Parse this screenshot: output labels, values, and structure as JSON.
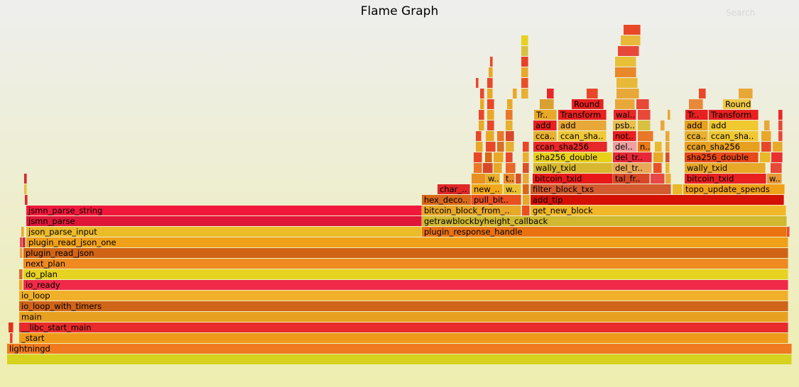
{
  "title": "Flame Graph",
  "search_label": "Search",
  "frames": [
    {
      "label": "",
      "d": 0,
      "l": 10,
      "w": 1105,
      "c": "#d6d21e"
    },
    {
      "label": "lightningd",
      "d": 1,
      "l": 10,
      "w": 1105,
      "c": "#f07a20"
    },
    {
      "label": "_start",
      "d": 2,
      "l": 27,
      "w": 1083,
      "c": "#ee9a18"
    },
    {
      "label": "",
      "d": 2,
      "l": 14,
      "w": 3,
      "c": "#e84030"
    },
    {
      "label": "__libc_start_main",
      "d": 3,
      "l": 27,
      "w": 1083,
      "c": "#e82a2a"
    },
    {
      "label": "",
      "d": 3,
      "l": 12,
      "w": 2,
      "c": "#d83820"
    },
    {
      "label": "",
      "d": 3,
      "l": 15,
      "w": 2,
      "c": "#e83020"
    },
    {
      "label": "main",
      "d": 4,
      "l": 27,
      "w": 1083,
      "c": "#e8a020"
    },
    {
      "label": "io_loop_with_timers",
      "d": 5,
      "l": 27,
      "w": 1083,
      "c": "#d06418"
    },
    {
      "label": "io_loop",
      "d": 6,
      "l": 27,
      "w": 1083,
      "c": "#f0b02a"
    },
    {
      "label": "io_ready",
      "d": 7,
      "l": 33,
      "w": 1077,
      "c": "#f02a48"
    },
    {
      "label": "",
      "d": 7,
      "l": 27,
      "w": 5,
      "c": "#e8a828"
    },
    {
      "label": "do_plan",
      "d": 8,
      "l": 33,
      "w": 1077,
      "c": "#e6d220"
    },
    {
      "label": "",
      "d": 8,
      "l": 27,
      "w": 5,
      "c": "#d86a28"
    },
    {
      "label": "next_plan",
      "d": 9,
      "l": 33,
      "w": 1077,
      "c": "#ee8a20"
    },
    {
      "label": "plugin_read_json",
      "d": 10,
      "l": 33,
      "w": 1077,
      "c": "#d06414"
    },
    {
      "label": "",
      "d": 10,
      "l": 28,
      "w": 4,
      "c": "#e8a040"
    },
    {
      "label": "plugin_read_json_one",
      "d": 11,
      "l": 37,
      "w": 1073,
      "c": "#f0a018"
    },
    {
      "label": "",
      "d": 11,
      "l": 28,
      "w": 3,
      "c": "#e05050"
    },
    {
      "label": "",
      "d": 11,
      "l": 32,
      "w": 3,
      "c": "#c83030"
    },
    {
      "label": "json_parse_input",
      "d": 12,
      "l": 37,
      "w": 557,
      "c": "#ecbc28"
    },
    {
      "label": "plugin_response_handle",
      "d": 12,
      "l": 594,
      "w": 514,
      "c": "#ea7210"
    },
    {
      "label": "",
      "d": 12,
      "l": 30,
      "w": 3,
      "c": "#e8a828"
    },
    {
      "label": "",
      "d": 12,
      "l": 1108,
      "w": 3,
      "c": "#e85030"
    },
    {
      "label": "jsmn_parse",
      "d": 13,
      "l": 37,
      "w": 557,
      "c": "#e01638"
    },
    {
      "label": "getrawblockbyheight_callback",
      "d": 13,
      "l": 594,
      "w": 514,
      "c": "#d0b830"
    },
    {
      "label": "jsmn_parse_string",
      "d": 14,
      "l": 37,
      "w": 557,
      "c": "#f2183c"
    },
    {
      "label": "bitcoin_block_from_..",
      "d": 14,
      "l": 594,
      "w": 140,
      "c": "#e8a828"
    },
    {
      "label": "get_new_block",
      "d": 14,
      "l": 747,
      "w": 360,
      "c": "#f0b828"
    },
    {
      "label": "",
      "d": 14,
      "l": 735,
      "w": 11,
      "c": "#e85020"
    },
    {
      "label": "",
      "d": 15,
      "l": 35,
      "w": 2,
      "c": "#e02828"
    },
    {
      "label": "hex_deco..",
      "d": 15,
      "l": 594,
      "w": 70,
      "c": "#d86818"
    },
    {
      "label": "pull_bit..",
      "d": 15,
      "l": 664,
      "w": 70,
      "c": "#e85020"
    },
    {
      "label": "",
      "d": 15,
      "l": 736,
      "w": 10,
      "c": "#e8a828"
    },
    {
      "label": "add_tip",
      "d": 15,
      "l": 747,
      "w": 357,
      "c": "#d41000"
    },
    {
      "label": "",
      "d": 16,
      "l": 34,
      "w": 3,
      "c": "#e8c040"
    },
    {
      "label": "char_..",
      "d": 16,
      "l": 616,
      "w": 46,
      "c": "#e02828"
    },
    {
      "label": "new_..",
      "d": 16,
      "l": 664,
      "w": 44,
      "c": "#f0a818"
    },
    {
      "label": "w..",
      "d": 16,
      "l": 709,
      "w": 25,
      "c": "#e8c030"
    },
    {
      "label": "",
      "d": 16,
      "l": 736,
      "w": 9,
      "c": "#d86818"
    },
    {
      "label": "filter_block_txs",
      "d": 16,
      "l": 747,
      "w": 198,
      "c": "#d45a30"
    },
    {
      "label": "",
      "d": 16,
      "l": 947,
      "w": 14,
      "c": "#e8b828"
    },
    {
      "label": "topo_update_spends",
      "d": 16,
      "l": 962,
      "w": 143,
      "c": "#f0a018"
    },
    {
      "label": "",
      "d": 17,
      "l": 34,
      "w": 3,
      "c": "#d82828"
    },
    {
      "label": "",
      "d": 17,
      "l": 664,
      "w": 20,
      "c": "#e89020"
    },
    {
      "label": "w..",
      "d": 17,
      "l": 684,
      "w": 20,
      "c": "#e8b028"
    },
    {
      "label": "t..",
      "d": 17,
      "l": 709,
      "w": 16,
      "c": "#e88828"
    },
    {
      "label": "",
      "d": 17,
      "l": 726,
      "w": 8,
      "c": "#d85028"
    },
    {
      "label": "",
      "d": 17,
      "l": 736,
      "w": 9,
      "c": "#e8a838"
    },
    {
      "label": "bitcoin_txid",
      "d": 17,
      "l": 750,
      "w": 113,
      "c": "#e81818"
    },
    {
      "label": "tal_fr..",
      "d": 17,
      "l": 863,
      "w": 52,
      "c": "#d84828"
    },
    {
      "label": "",
      "d": 17,
      "l": 916,
      "w": 20,
      "c": "#e84848"
    },
    {
      "label": "",
      "d": 17,
      "l": 937,
      "w": 8,
      "c": "#e8a838"
    },
    {
      "label": "bitcoin_txid",
      "d": 17,
      "l": 964,
      "w": 115,
      "c": "#e82020"
    },
    {
      "label": "w..",
      "d": 17,
      "l": 1080,
      "w": 21,
      "c": "#e89838"
    },
    {
      "label": "",
      "d": 18,
      "l": 667,
      "w": 12,
      "c": "#e87828"
    },
    {
      "label": "",
      "d": 18,
      "l": 680,
      "w": 14,
      "c": "#d84828"
    },
    {
      "label": "",
      "d": 18,
      "l": 695,
      "w": 12,
      "c": "#e8a828"
    },
    {
      "label": "",
      "d": 18,
      "l": 712,
      "w": 14,
      "c": "#e86828"
    },
    {
      "label": "",
      "d": 18,
      "l": 736,
      "w": 9,
      "c": "#d85028"
    },
    {
      "label": "wally_txid",
      "d": 18,
      "l": 751,
      "w": 112,
      "c": "#d8b830"
    },
    {
      "label": "del_tr..",
      "d": 18,
      "l": 863,
      "w": 55,
      "c": "#e8a858"
    },
    {
      "label": "",
      "d": 18,
      "l": 920,
      "w": 12,
      "c": "#e85028"
    },
    {
      "label": "",
      "d": 18,
      "l": 937,
      "w": 6,
      "c": "#e8b830"
    },
    {
      "label": "wally_txid",
      "d": 18,
      "l": 964,
      "w": 114,
      "c": "#e8a828"
    },
    {
      "label": "",
      "d": 18,
      "l": 1085,
      "w": 16,
      "c": "#e84838"
    },
    {
      "label": "",
      "d": 19,
      "l": 667,
      "w": 12,
      "c": "#e84828"
    },
    {
      "label": "",
      "d": 19,
      "l": 683,
      "w": 10,
      "c": "#d86818"
    },
    {
      "label": "",
      "d": 19,
      "l": 695,
      "w": 14,
      "c": "#e8a828"
    },
    {
      "label": "",
      "d": 19,
      "l": 712,
      "w": 10,
      "c": "#e84828"
    },
    {
      "label": "",
      "d": 19,
      "l": 736,
      "w": 9,
      "c": "#e8b030"
    },
    {
      "label": "sha256_double",
      "d": 19,
      "l": 751,
      "w": 111,
      "c": "#e8d018"
    },
    {
      "label": "del_tr..",
      "d": 19,
      "l": 863,
      "w": 55,
      "c": "#e82838"
    },
    {
      "label": "",
      "d": 19,
      "l": 920,
      "w": 14,
      "c": "#e8a828"
    },
    {
      "label": "",
      "d": 19,
      "l": 937,
      "w": 6,
      "c": "#d85028"
    },
    {
      "label": "sha256_double",
      "d": 19,
      "l": 964,
      "w": 104,
      "c": "#e84818"
    },
    {
      "label": "",
      "d": 19,
      "l": 1070,
      "w": 15,
      "c": "#e8b828"
    },
    {
      "label": "",
      "d": 19,
      "l": 1086,
      "w": 16,
      "c": "#e83030"
    },
    {
      "label": "",
      "d": 20,
      "l": 670,
      "w": 10,
      "c": "#e8a828"
    },
    {
      "label": "",
      "d": 20,
      "l": 684,
      "w": 14,
      "c": "#e84828"
    },
    {
      "label": "",
      "d": 20,
      "l": 700,
      "w": 10,
      "c": "#d87028"
    },
    {
      "label": "",
      "d": 20,
      "l": 712,
      "w": 12,
      "c": "#e8b030"
    },
    {
      "label": "",
      "d": 20,
      "l": 736,
      "w": 9,
      "c": "#e84828"
    },
    {
      "label": "ccan_sha256",
      "d": 20,
      "l": 751,
      "w": 104,
      "c": "#e82828"
    },
    {
      "label": "del..",
      "d": 20,
      "l": 863,
      "w": 34,
      "c": "#f0a0a0"
    },
    {
      "label": "n..",
      "d": 20,
      "l": 898,
      "w": 18,
      "c": "#e87818"
    },
    {
      "label": "",
      "d": 20,
      "l": 922,
      "w": 10,
      "c": "#e8b830"
    },
    {
      "label": "",
      "d": 20,
      "l": 937,
      "w": 6,
      "c": "#e8a838"
    },
    {
      "label": "ccan_sha256",
      "d": 20,
      "l": 964,
      "w": 106,
      "c": "#e8a020"
    },
    {
      "label": "",
      "d": 20,
      "l": 1072,
      "w": 14,
      "c": "#e84828"
    },
    {
      "label": "",
      "d": 20,
      "l": 1088,
      "w": 14,
      "c": "#e8a828"
    },
    {
      "label": "",
      "d": 21,
      "l": 670,
      "w": 8,
      "c": "#e84828"
    },
    {
      "label": "",
      "d": 21,
      "l": 684,
      "w": 12,
      "c": "#e8a828"
    },
    {
      "label": "",
      "d": 21,
      "l": 700,
      "w": 10,
      "c": "#e87828"
    },
    {
      "label": "",
      "d": 21,
      "l": 712,
      "w": 12,
      "c": "#d84828"
    },
    {
      "label": "cca..",
      "d": 21,
      "l": 751,
      "w": 33,
      "c": "#e8b030"
    },
    {
      "label": "ccan_sha..",
      "d": 21,
      "l": 786,
      "w": 68,
      "c": "#f0c838"
    },
    {
      "label": "not..",
      "d": 21,
      "l": 863,
      "w": 33,
      "c": "#e82020"
    },
    {
      "label": "",
      "d": 21,
      "l": 898,
      "w": 22,
      "c": "#e87828"
    },
    {
      "label": "",
      "d": 21,
      "l": 937,
      "w": 6,
      "c": "#e8a838"
    },
    {
      "label": "cca..",
      "d": 21,
      "l": 964,
      "w": 33,
      "c": "#e8b030"
    },
    {
      "label": "ccan_sha..",
      "d": 21,
      "l": 998,
      "w": 70,
      "c": "#f0c830"
    },
    {
      "label": "",
      "d": 21,
      "l": 1072,
      "w": 14,
      "c": "#e8a828"
    },
    {
      "label": "",
      "d": 21,
      "l": 1096,
      "w": 6,
      "c": "#e84838"
    },
    {
      "label": "",
      "d": 22,
      "l": 674,
      "w": 8,
      "c": "#e8a828"
    },
    {
      "label": "",
      "d": 22,
      "l": 686,
      "w": 10,
      "c": "#e84828"
    },
    {
      "label": "",
      "d": 22,
      "l": 712,
      "w": 10,
      "c": "#e8b030"
    },
    {
      "label": "add",
      "d": 22,
      "l": 751,
      "w": 33,
      "c": "#e82020"
    },
    {
      "label": "add",
      "d": 22,
      "l": 786,
      "w": 68,
      "c": "#e8a838"
    },
    {
      "label": "psb..",
      "d": 22,
      "l": 863,
      "w": 33,
      "c": "#e8c050"
    },
    {
      "label": "",
      "d": 22,
      "l": 898,
      "w": 18,
      "c": "#d8c040"
    },
    {
      "label": "",
      "d": 22,
      "l": 930,
      "w": 6,
      "c": "#e8a838"
    },
    {
      "label": "add",
      "d": 22,
      "l": 964,
      "w": 33,
      "c": "#e8a020"
    },
    {
      "label": "add",
      "d": 22,
      "l": 998,
      "w": 70,
      "c": "#f0c830"
    },
    {
      "label": "",
      "d": 22,
      "l": 1076,
      "w": 8,
      "c": "#e8a838"
    },
    {
      "label": "",
      "d": 22,
      "l": 1096,
      "w": 6,
      "c": "#e84838"
    },
    {
      "label": "",
      "d": 23,
      "l": 674,
      "w": 8,
      "c": "#e84828"
    },
    {
      "label": "",
      "d": 23,
      "l": 686,
      "w": 10,
      "c": "#e8a828"
    },
    {
      "label": "",
      "d": 23,
      "l": 712,
      "w": 10,
      "c": "#e87828"
    },
    {
      "label": "Tr..",
      "d": 23,
      "l": 752,
      "w": 32,
      "c": "#e8a828"
    },
    {
      "label": "Transform",
      "d": 23,
      "l": 786,
      "w": 68,
      "c": "#e82020"
    },
    {
      "label": "wal..",
      "d": 23,
      "l": 864,
      "w": 32,
      "c": "#e82828"
    },
    {
      "label": "",
      "d": 23,
      "l": 898,
      "w": 18,
      "c": "#e84838"
    },
    {
      "label": "",
      "d": 23,
      "l": 940,
      "w": 4,
      "c": "#e8a838"
    },
    {
      "label": "Tr..",
      "d": 23,
      "l": 965,
      "w": 32,
      "c": "#e82020"
    },
    {
      "label": "Transform",
      "d": 23,
      "l": 998,
      "w": 70,
      "c": "#e82020"
    },
    {
      "label": "",
      "d": 23,
      "l": 1096,
      "w": 6,
      "c": "#e82828"
    },
    {
      "label": "",
      "d": 24,
      "l": 676,
      "w": 6,
      "c": "#e8a828"
    },
    {
      "label": "",
      "d": 24,
      "l": 686,
      "w": 10,
      "c": "#e84828"
    },
    {
      "label": "",
      "d": 24,
      "l": 714,
      "w": 8,
      "c": "#e8a828"
    },
    {
      "label": "",
      "d": 24,
      "l": 760,
      "w": 20,
      "c": "#d8a030"
    },
    {
      "label": "Round",
      "d": 24,
      "l": 805,
      "w": 45,
      "c": "#e82020"
    },
    {
      "label": "",
      "d": 24,
      "l": 866,
      "w": 28,
      "c": "#e8a838"
    },
    {
      "label": "",
      "d": 24,
      "l": 896,
      "w": 18,
      "c": "#e84838"
    },
    {
      "label": "",
      "d": 24,
      "l": 970,
      "w": 20,
      "c": "#e88838"
    },
    {
      "label": "Round",
      "d": 24,
      "l": 1018,
      "w": 40,
      "c": "#f0c848"
    },
    {
      "label": "",
      "d": 25,
      "l": 676,
      "w": 6,
      "c": "#e84828"
    },
    {
      "label": "",
      "d": 25,
      "l": 686,
      "w": 8,
      "c": "#e8a828"
    },
    {
      "label": "",
      "d": 25,
      "l": 722,
      "w": 6,
      "c": "#e8a828"
    },
    {
      "label": "",
      "d": 25,
      "l": 770,
      "w": 10,
      "c": "#e82828"
    },
    {
      "label": "",
      "d": 25,
      "l": 826,
      "w": 16,
      "c": "#e84828"
    },
    {
      "label": "",
      "d": 25,
      "l": 868,
      "w": 32,
      "c": "#e8a838"
    },
    {
      "label": "",
      "d": 25,
      "l": 984,
      "w": 10,
      "c": "#e84828"
    },
    {
      "label": "",
      "d": 25,
      "l": 1040,
      "w": 20,
      "c": "#e8a838"
    },
    {
      "label": "",
      "d": 26,
      "l": 670,
      "w": 4,
      "c": "#e84828"
    },
    {
      "label": "",
      "d": 26,
      "l": 686,
      "w": 8,
      "c": "#e84828"
    },
    {
      "label": "",
      "d": 26,
      "l": 868,
      "w": 30,
      "c": "#e8b838"
    },
    {
      "label": "",
      "d": 27,
      "l": 688,
      "w": 6,
      "c": "#e8a828"
    },
    {
      "label": "",
      "d": 27,
      "l": 866,
      "w": 30,
      "c": "#e88828"
    },
    {
      "label": "",
      "d": 28,
      "l": 690,
      "w": 4,
      "c": "#e84828"
    },
    {
      "label": "",
      "d": 28,
      "l": 866,
      "w": 30,
      "c": "#e8c038"
    },
    {
      "label": "",
      "d": 29,
      "l": 870,
      "w": 30,
      "c": "#e84838"
    },
    {
      "label": "",
      "d": 30,
      "l": 874,
      "w": 28,
      "c": "#e8b838"
    },
    {
      "label": "",
      "d": 31,
      "l": 878,
      "w": 24,
      "c": "#e84828"
    },
    {
      "label": "",
      "d": 25,
      "l": 734,
      "w": 10,
      "c": "#e8b030"
    },
    {
      "label": "",
      "d": 26,
      "l": 734,
      "w": 10,
      "c": "#e85028"
    },
    {
      "label": "",
      "d": 27,
      "l": 734,
      "w": 10,
      "c": "#e8a828"
    },
    {
      "label": "",
      "d": 28,
      "l": 734,
      "w": 10,
      "c": "#e84028"
    },
    {
      "label": "",
      "d": 29,
      "l": 734,
      "w": 10,
      "c": "#d8c040"
    },
    {
      "label": "",
      "d": 30,
      "l": 734,
      "w": 10,
      "c": "#e8d020"
    }
  ]
}
